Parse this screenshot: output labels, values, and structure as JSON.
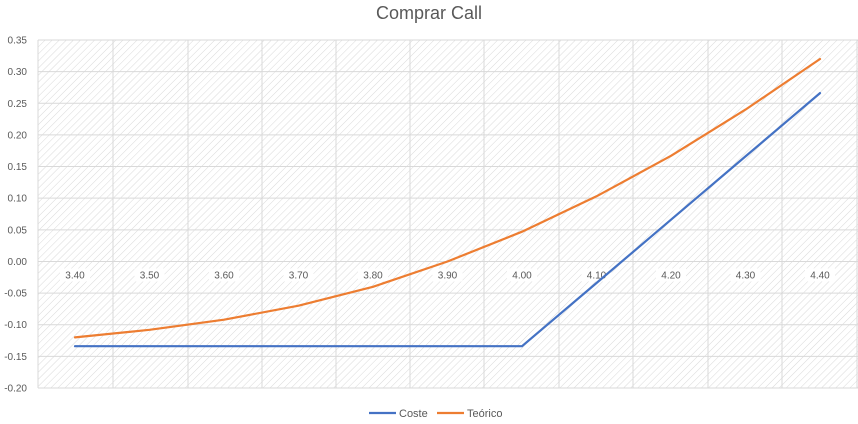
{
  "chart_data": {
    "type": "line",
    "title": "Comprar Call",
    "xlabel": "",
    "ylabel": "",
    "categories": [
      "3.40",
      "3.50",
      "3.60",
      "3.70",
      "3.80",
      "3.90",
      "4.00",
      "4.10",
      "4.20",
      "4.30",
      "4.40"
    ],
    "y_ticks": [
      "0.35",
      "0.30",
      "0.25",
      "0.20",
      "0.15",
      "0.10",
      "0.05",
      "0.00",
      "-0.05",
      "-0.10",
      "-0.15",
      "-0.20"
    ],
    "ylim": [
      -0.2,
      0.35
    ],
    "grid": true,
    "legend_position": "bottom",
    "series": [
      {
        "name": "Coste",
        "color": "#4472C4",
        "values": [
          -0.134,
          -0.134,
          -0.134,
          -0.134,
          -0.134,
          -0.134,
          -0.134,
          -0.034,
          0.066,
          0.166,
          0.266
        ]
      },
      {
        "name": "Teórico",
        "color": "#ED7D31",
        "values": [
          -0.12,
          -0.108,
          -0.092,
          -0.07,
          -0.04,
          0.0,
          0.047,
          0.103,
          0.167,
          0.24,
          0.32
        ]
      }
    ]
  }
}
